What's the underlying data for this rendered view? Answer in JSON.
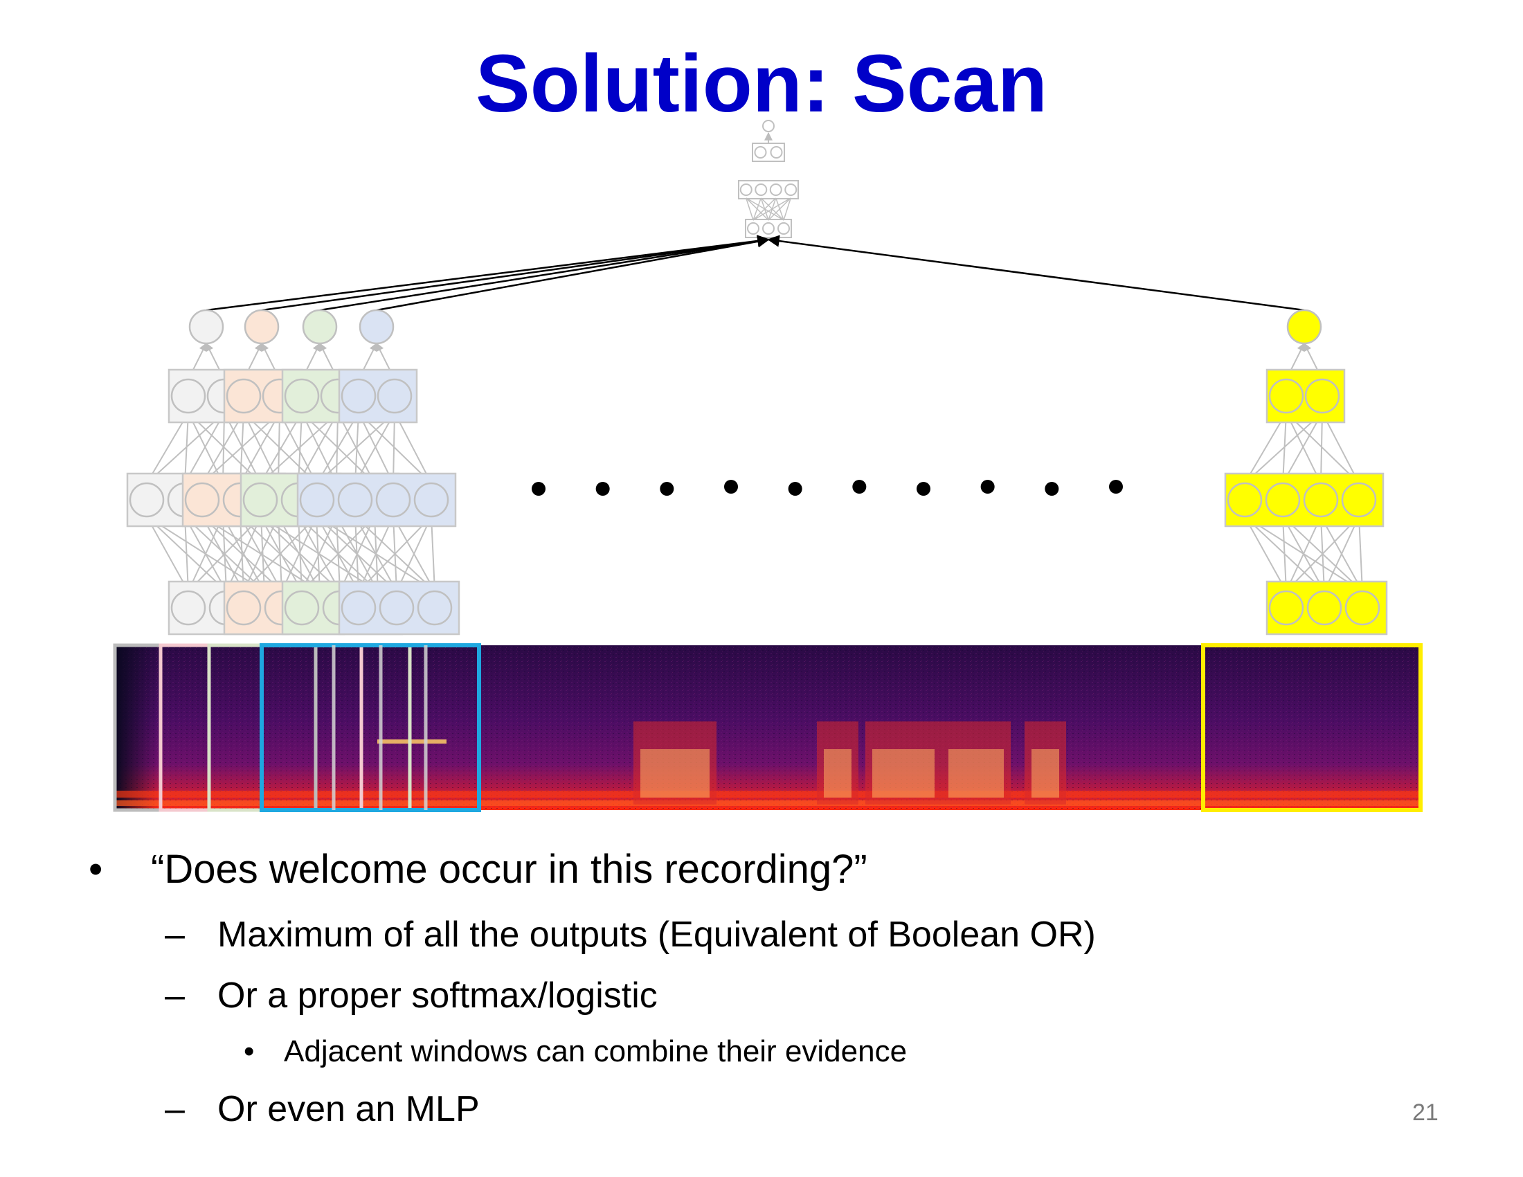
{
  "slide": {
    "title": "Solution: Scan",
    "page_number": "21"
  },
  "bullets": [
    {
      "level": 1,
      "marker": "•",
      "text": "“Does welcome occur in this recording?”"
    },
    {
      "level": 2,
      "marker": "–",
      "text": "Maximum of all the outputs (Equivalent of Boolean OR)"
    },
    {
      "level": 2,
      "marker": "–",
      "text": "Or a proper softmax/logistic"
    },
    {
      "level": 3,
      "marker": "•",
      "text": "Adjacent windows can combine their evidence"
    },
    {
      "level": 2,
      "marker": "–",
      "text": "Or even an MLP"
    }
  ],
  "diagram": {
    "scan_networks": [
      {
        "fill": "#f2f2f2",
        "border": "#c8c8c8",
        "window_frame": "#bcbcbc"
      },
      {
        "fill": "#fbe5d6",
        "border": "#c8c8c8",
        "window_frame": "#f4c9cf"
      },
      {
        "fill": "#e2efda",
        "border": "#c8c8c8",
        "window_frame": "#d9e3c8"
      },
      {
        "fill": "#dae3f3",
        "border": "#c8c8c8",
        "window_frame": "#1fa8e0"
      }
    ],
    "last_network": {
      "fill": "#ffff00",
      "border": "#c8c8c8",
      "window_frame": "#ffee00"
    },
    "ellipsis_dots": 10,
    "colors": {
      "top_network": "#c0c0c0",
      "connection_line": "#000000",
      "network_edge": "#c0c0c0",
      "spectrogram_background": "#3c0a56",
      "spectrogram_hot": "#ff3a12"
    }
  }
}
